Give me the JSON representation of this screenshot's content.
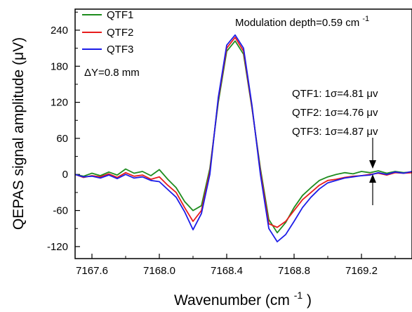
{
  "chart_data": {
    "type": "line",
    "xlabel": "Wavenumber (cm",
    "xlabel_sup": "-1",
    "xlabel_end": ")",
    "ylabel": "QEPAS signal amplitude (μV)",
    "xlim": [
      7167.5,
      7169.5
    ],
    "ylim": [
      -140,
      275
    ],
    "xticks": [
      7167.6,
      7168.0,
      7168.4,
      7168.8,
      7169.2
    ],
    "xtick_labels": [
      "7167.6",
      "7168.0",
      "7168.4",
      "7168.8",
      "7169.2"
    ],
    "yticks": [
      -120,
      -60,
      0,
      60,
      120,
      180,
      240
    ],
    "ytick_labels": [
      "-120",
      "-60",
      "0",
      "60",
      "120",
      "180",
      "240"
    ],
    "legend_position": "top-left",
    "series": [
      {
        "name": "QTF1",
        "color": "#1e8c1e",
        "points": [
          [
            7167.5,
            0
          ],
          [
            7167.55,
            -3
          ],
          [
            7167.6,
            2
          ],
          [
            7167.65,
            -2
          ],
          [
            7167.7,
            4
          ],
          [
            7167.75,
            -1
          ],
          [
            7167.8,
            9
          ],
          [
            7167.85,
            2
          ],
          [
            7167.9,
            5
          ],
          [
            7167.95,
            -2
          ],
          [
            7168.0,
            8
          ],
          [
            7168.05,
            -8
          ],
          [
            7168.1,
            -22
          ],
          [
            7168.15,
            -45
          ],
          [
            7168.2,
            -60
          ],
          [
            7168.25,
            -52
          ],
          [
            7168.3,
            10
          ],
          [
            7168.35,
            120
          ],
          [
            7168.4,
            205
          ],
          [
            7168.45,
            222
          ],
          [
            7168.5,
            200
          ],
          [
            7168.55,
            110
          ],
          [
            7168.6,
            10
          ],
          [
            7168.65,
            -75
          ],
          [
            7168.7,
            -97
          ],
          [
            7168.75,
            -80
          ],
          [
            7168.8,
            -55
          ],
          [
            7168.85,
            -35
          ],
          [
            7168.9,
            -22
          ],
          [
            7168.95,
            -10
          ],
          [
            7169.0,
            -4
          ],
          [
            7169.05,
            0
          ],
          [
            7169.1,
            3
          ],
          [
            7169.15,
            1
          ],
          [
            7169.2,
            5
          ],
          [
            7169.25,
            3
          ],
          [
            7169.3,
            6
          ],
          [
            7169.35,
            2
          ],
          [
            7169.4,
            5
          ],
          [
            7169.45,
            3
          ],
          [
            7169.5,
            4
          ]
        ]
      },
      {
        "name": "QTF2",
        "color": "#e81c1c",
        "points": [
          [
            7167.5,
            0
          ],
          [
            7167.55,
            -5
          ],
          [
            7167.6,
            -2
          ],
          [
            7167.65,
            -4
          ],
          [
            7167.7,
            1
          ],
          [
            7167.75,
            -5
          ],
          [
            7167.8,
            3
          ],
          [
            7167.85,
            -3
          ],
          [
            7167.9,
            -1
          ],
          [
            7167.95,
            -8
          ],
          [
            7168.0,
            -4
          ],
          [
            7168.05,
            -18
          ],
          [
            7168.1,
            -30
          ],
          [
            7168.15,
            -55
          ],
          [
            7168.2,
            -78
          ],
          [
            7168.25,
            -60
          ],
          [
            7168.3,
            5
          ],
          [
            7168.35,
            125
          ],
          [
            7168.4,
            210
          ],
          [
            7168.45,
            228
          ],
          [
            7168.5,
            205
          ],
          [
            7168.55,
            112
          ],
          [
            7168.6,
            5
          ],
          [
            7168.65,
            -82
          ],
          [
            7168.7,
            -88
          ],
          [
            7168.75,
            -78
          ],
          [
            7168.8,
            -60
          ],
          [
            7168.85,
            -42
          ],
          [
            7168.9,
            -30
          ],
          [
            7168.95,
            -18
          ],
          [
            7169.0,
            -10
          ],
          [
            7169.05,
            -8
          ],
          [
            7169.1,
            -5
          ],
          [
            7169.15,
            -3
          ],
          [
            7169.2,
            -2
          ],
          [
            7169.25,
            0
          ],
          [
            7169.3,
            2
          ],
          [
            7169.35,
            -1
          ],
          [
            7169.4,
            3
          ],
          [
            7169.45,
            2
          ],
          [
            7169.5,
            3
          ]
        ]
      },
      {
        "name": "QTF3",
        "color": "#1c1ce8",
        "points": [
          [
            7167.5,
            0
          ],
          [
            7167.55,
            -4
          ],
          [
            7167.6,
            -3
          ],
          [
            7167.65,
            -6
          ],
          [
            7167.7,
            -1
          ],
          [
            7167.75,
            -7
          ],
          [
            7167.8,
            0
          ],
          [
            7167.85,
            -6
          ],
          [
            7167.9,
            -4
          ],
          [
            7167.95,
            -10
          ],
          [
            7168.0,
            -12
          ],
          [
            7168.05,
            -25
          ],
          [
            7168.1,
            -38
          ],
          [
            7168.15,
            -62
          ],
          [
            7168.2,
            -92
          ],
          [
            7168.25,
            -65
          ],
          [
            7168.3,
            0
          ],
          [
            7168.35,
            128
          ],
          [
            7168.4,
            215
          ],
          [
            7168.45,
            232
          ],
          [
            7168.5,
            210
          ],
          [
            7168.55,
            115
          ],
          [
            7168.6,
            0
          ],
          [
            7168.65,
            -90
          ],
          [
            7168.7,
            -112
          ],
          [
            7168.75,
            -100
          ],
          [
            7168.8,
            -78
          ],
          [
            7168.85,
            -55
          ],
          [
            7168.9,
            -38
          ],
          [
            7168.95,
            -24
          ],
          [
            7169.0,
            -14
          ],
          [
            7169.05,
            -10
          ],
          [
            7169.1,
            -6
          ],
          [
            7169.15,
            -4
          ],
          [
            7169.2,
            -2
          ],
          [
            7169.25,
            -1
          ],
          [
            7169.3,
            3
          ],
          [
            7169.35,
            0
          ],
          [
            7169.4,
            4
          ],
          [
            7169.45,
            2
          ],
          [
            7169.5,
            5
          ]
        ]
      }
    ],
    "annotations": {
      "top_right": "Modulation depth=0.59 cm",
      "top_right_sup": "-1",
      "delta_y": "ΔY=0.8 mm",
      "sigma_lines": [
        "QTF1: 1σ=4.81 μv",
        "QTF2: 1σ=4.76 μv",
        "QTF3: 1σ=4.87 μv"
      ]
    }
  }
}
